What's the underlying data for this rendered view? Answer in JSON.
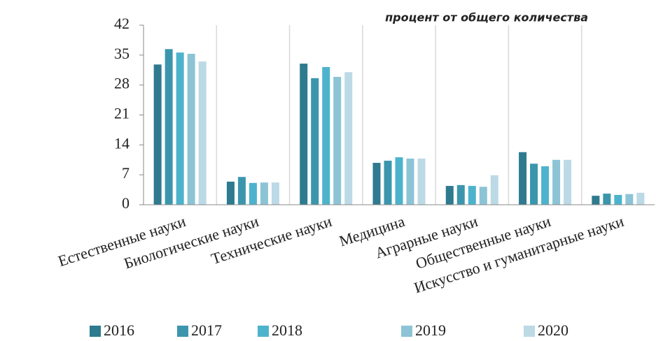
{
  "chart_data": {
    "type": "bar",
    "annotation": "процент от общего количества",
    "categories": [
      "Естественные науки",
      "Биологические науки",
      "Технические науки",
      "Медицина",
      "Аграрные науки",
      "Общественные науки",
      "Искусство и гуманитарные науки"
    ],
    "series": [
      {
        "name": "2016",
        "color": "#2e7a8f",
        "values": [
          32.8,
          5.4,
          33.0,
          9.8,
          4.4,
          12.3,
          2.1
        ]
      },
      {
        "name": "2017",
        "color": "#3b96ad",
        "values": [
          36.4,
          6.5,
          29.6,
          10.3,
          4.6,
          9.6,
          2.6
        ]
      },
      {
        "name": "2018",
        "color": "#4db3cc",
        "values": [
          35.6,
          5.1,
          32.2,
          11.1,
          4.4,
          9.0,
          2.3
        ]
      },
      {
        "name": "2019",
        "color": "#8cc4d6",
        "values": [
          35.3,
          5.2,
          29.9,
          10.8,
          4.2,
          10.5,
          2.5
        ]
      },
      {
        "name": "2020",
        "color": "#bcd9e6",
        "values": [
          33.5,
          5.2,
          31.0,
          10.8,
          6.9,
          10.5,
          2.8
        ]
      }
    ],
    "ylim": [
      0,
      42
    ],
    "yticks": [
      0,
      7,
      14,
      21,
      28,
      35,
      42
    ],
    "grid": true,
    "legend": "bottom"
  }
}
